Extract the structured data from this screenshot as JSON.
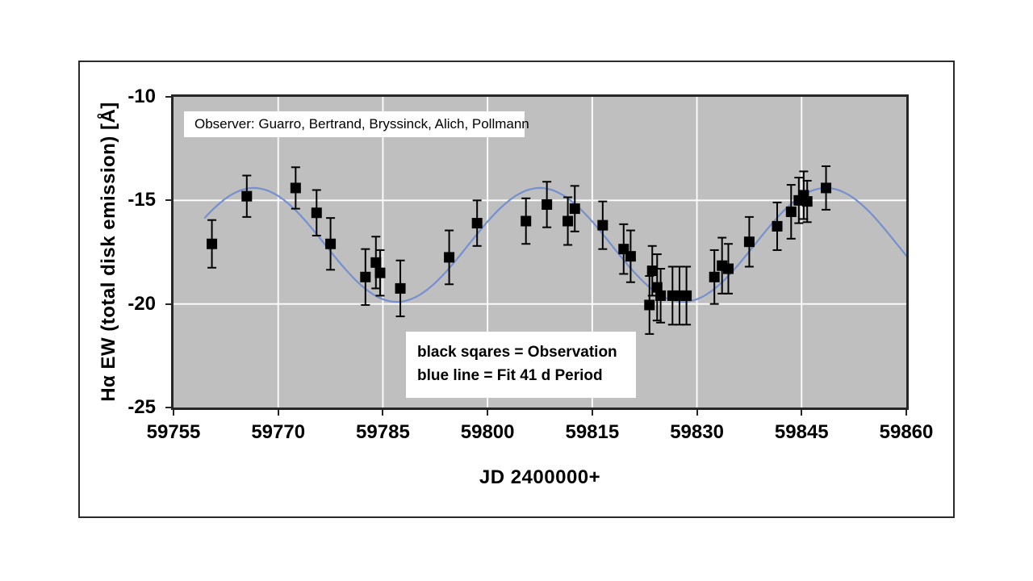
{
  "page": {
    "background": "#ffffff"
  },
  "chart_data": {
    "type": "scatter",
    "title": "",
    "xlabel": "JD 2400000+",
    "ylabel": "Hα EW (total disk emission) [Å]",
    "xlim": [
      59755,
      59860
    ],
    "ylim": [
      -25,
      -10
    ],
    "xticks": [
      59755,
      59770,
      59785,
      59800,
      59815,
      59830,
      59845,
      59860
    ],
    "yticks": [
      -10,
      -15,
      -20,
      -25
    ],
    "grid": true,
    "annotations": {
      "observer": "Observer: Guarro, Bertrand, Bryssinck, Alich, Pollmann",
      "legend_lines": [
        "black sqares = Observation",
        "blue line = Fit 41 d Period"
      ]
    },
    "series": [
      {
        "name": "Observation",
        "type": "scatter",
        "marker": "square",
        "color": "#000000",
        "points": [
          [
            59760.5,
            -17.1,
            1.15
          ],
          [
            59765.5,
            -14.8,
            1.0
          ],
          [
            59772.5,
            -14.4,
            1.0
          ],
          [
            59775.5,
            -15.6,
            1.1
          ],
          [
            59777.5,
            -17.1,
            1.25
          ],
          [
            59782.5,
            -18.7,
            1.35
          ],
          [
            59784.0,
            -18.0,
            1.25
          ],
          [
            59784.6,
            -18.5,
            1.1
          ],
          [
            59787.5,
            -19.25,
            1.35
          ],
          [
            59794.5,
            -17.75,
            1.3
          ],
          [
            59798.5,
            -16.1,
            1.1
          ],
          [
            59805.5,
            -16.0,
            1.1
          ],
          [
            59808.5,
            -15.2,
            1.1
          ],
          [
            59811.5,
            -16.0,
            1.15
          ],
          [
            59812.5,
            -15.4,
            1.1
          ],
          [
            59816.5,
            -16.2,
            1.15
          ],
          [
            59819.5,
            -17.35,
            1.2
          ],
          [
            59820.5,
            -17.7,
            1.25
          ],
          [
            59823.2,
            -20.05,
            1.4
          ],
          [
            59823.6,
            -18.4,
            1.2
          ],
          [
            59824.3,
            -19.2,
            1.6
          ],
          [
            59824.8,
            -19.6,
            1.3
          ],
          [
            59826.5,
            -19.6,
            1.4
          ],
          [
            59827.5,
            -19.6,
            1.4
          ],
          [
            59828.5,
            -19.6,
            1.4
          ],
          [
            59832.5,
            -18.7,
            1.3
          ],
          [
            59833.6,
            -18.15,
            1.35
          ],
          [
            59834.5,
            -18.3,
            1.2
          ],
          [
            59837.5,
            -17.0,
            1.2
          ],
          [
            59841.5,
            -16.25,
            1.15
          ],
          [
            59843.5,
            -15.55,
            1.3
          ],
          [
            59844.6,
            -15.0,
            1.1
          ],
          [
            59845.3,
            -14.75,
            1.15
          ],
          [
            59845.8,
            -15.05,
            1.0
          ],
          [
            59848.5,
            -14.4,
            1.05
          ]
        ]
      },
      {
        "name": "Fit 41 d Period",
        "type": "line",
        "color": "#7590cf",
        "fit": {
          "function": "cosine",
          "mean": -17.15,
          "amplitude": 2.75,
          "period_days": 41,
          "x_of_maximum": 59766.5,
          "x_start": 59759.5,
          "x_end": 59860
        }
      }
    ],
    "colors": {
      "plot_background": "#bfbfbf",
      "gridline": "#ffffff",
      "axis_frame": "#262626",
      "marker": "#000000",
      "fit_line": "#7590cf",
      "text": "#000000"
    }
  }
}
